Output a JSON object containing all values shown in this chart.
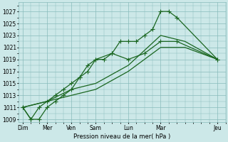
{
  "xlabel": "Pression niveau de la mer( hPa )",
  "background_color": "#cce8e8",
  "grid_color": "#88bbbb",
  "line_color": "#1a6620",
  "ylim": [
    1008.5,
    1028.5
  ],
  "yticks": [
    1009,
    1011,
    1013,
    1015,
    1017,
    1019,
    1021,
    1023,
    1025,
    1027
  ],
  "x_labels": [
    "Dim",
    "Mer",
    "Ven",
    "Sam",
    "Lun",
    "Mar",
    "Jeu"
  ],
  "x_positions": [
    0,
    3,
    6,
    9,
    13,
    17,
    24
  ],
  "xlim": [
    -0.5,
    25
  ],
  "series": [
    {
      "x": [
        0,
        1,
        2,
        3,
        4,
        5,
        6,
        7,
        8,
        9,
        11,
        13,
        15,
        17,
        19,
        24
      ],
      "y": [
        1011,
        1009,
        1009,
        1011,
        1012,
        1013,
        1014,
        1016,
        1018,
        1019,
        1020,
        1019,
        1020,
        1022,
        1022,
        1019
      ],
      "marker": "+",
      "markersize": 4,
      "linewidth": 0.9
    },
    {
      "x": [
        0,
        1,
        2,
        3,
        4,
        5,
        6,
        7,
        8,
        9,
        10,
        11,
        12,
        13,
        14,
        15,
        16,
        17,
        18,
        19,
        24
      ],
      "y": [
        1011,
        1009,
        1011,
        1012,
        1013,
        1014,
        1015,
        1016,
        1017,
        1019,
        1019,
        1020,
        1022,
        1022,
        1022,
        1023,
        1024,
        1027,
        1027,
        1026,
        1019
      ],
      "marker": "+",
      "markersize": 4,
      "linewidth": 0.9
    },
    {
      "x": [
        0,
        3,
        6,
        9,
        13,
        17,
        20,
        24
      ],
      "y": [
        1011,
        1012,
        1014,
        1015,
        1018,
        1023,
        1022,
        1019
      ],
      "marker": "None",
      "markersize": 0,
      "linewidth": 0.9
    },
    {
      "x": [
        0,
        3,
        6,
        9,
        13,
        17,
        20,
        24
      ],
      "y": [
        1011,
        1012,
        1013,
        1014,
        1017,
        1021,
        1021,
        1019
      ],
      "marker": "None",
      "markersize": 0,
      "linewidth": 0.9
    }
  ]
}
